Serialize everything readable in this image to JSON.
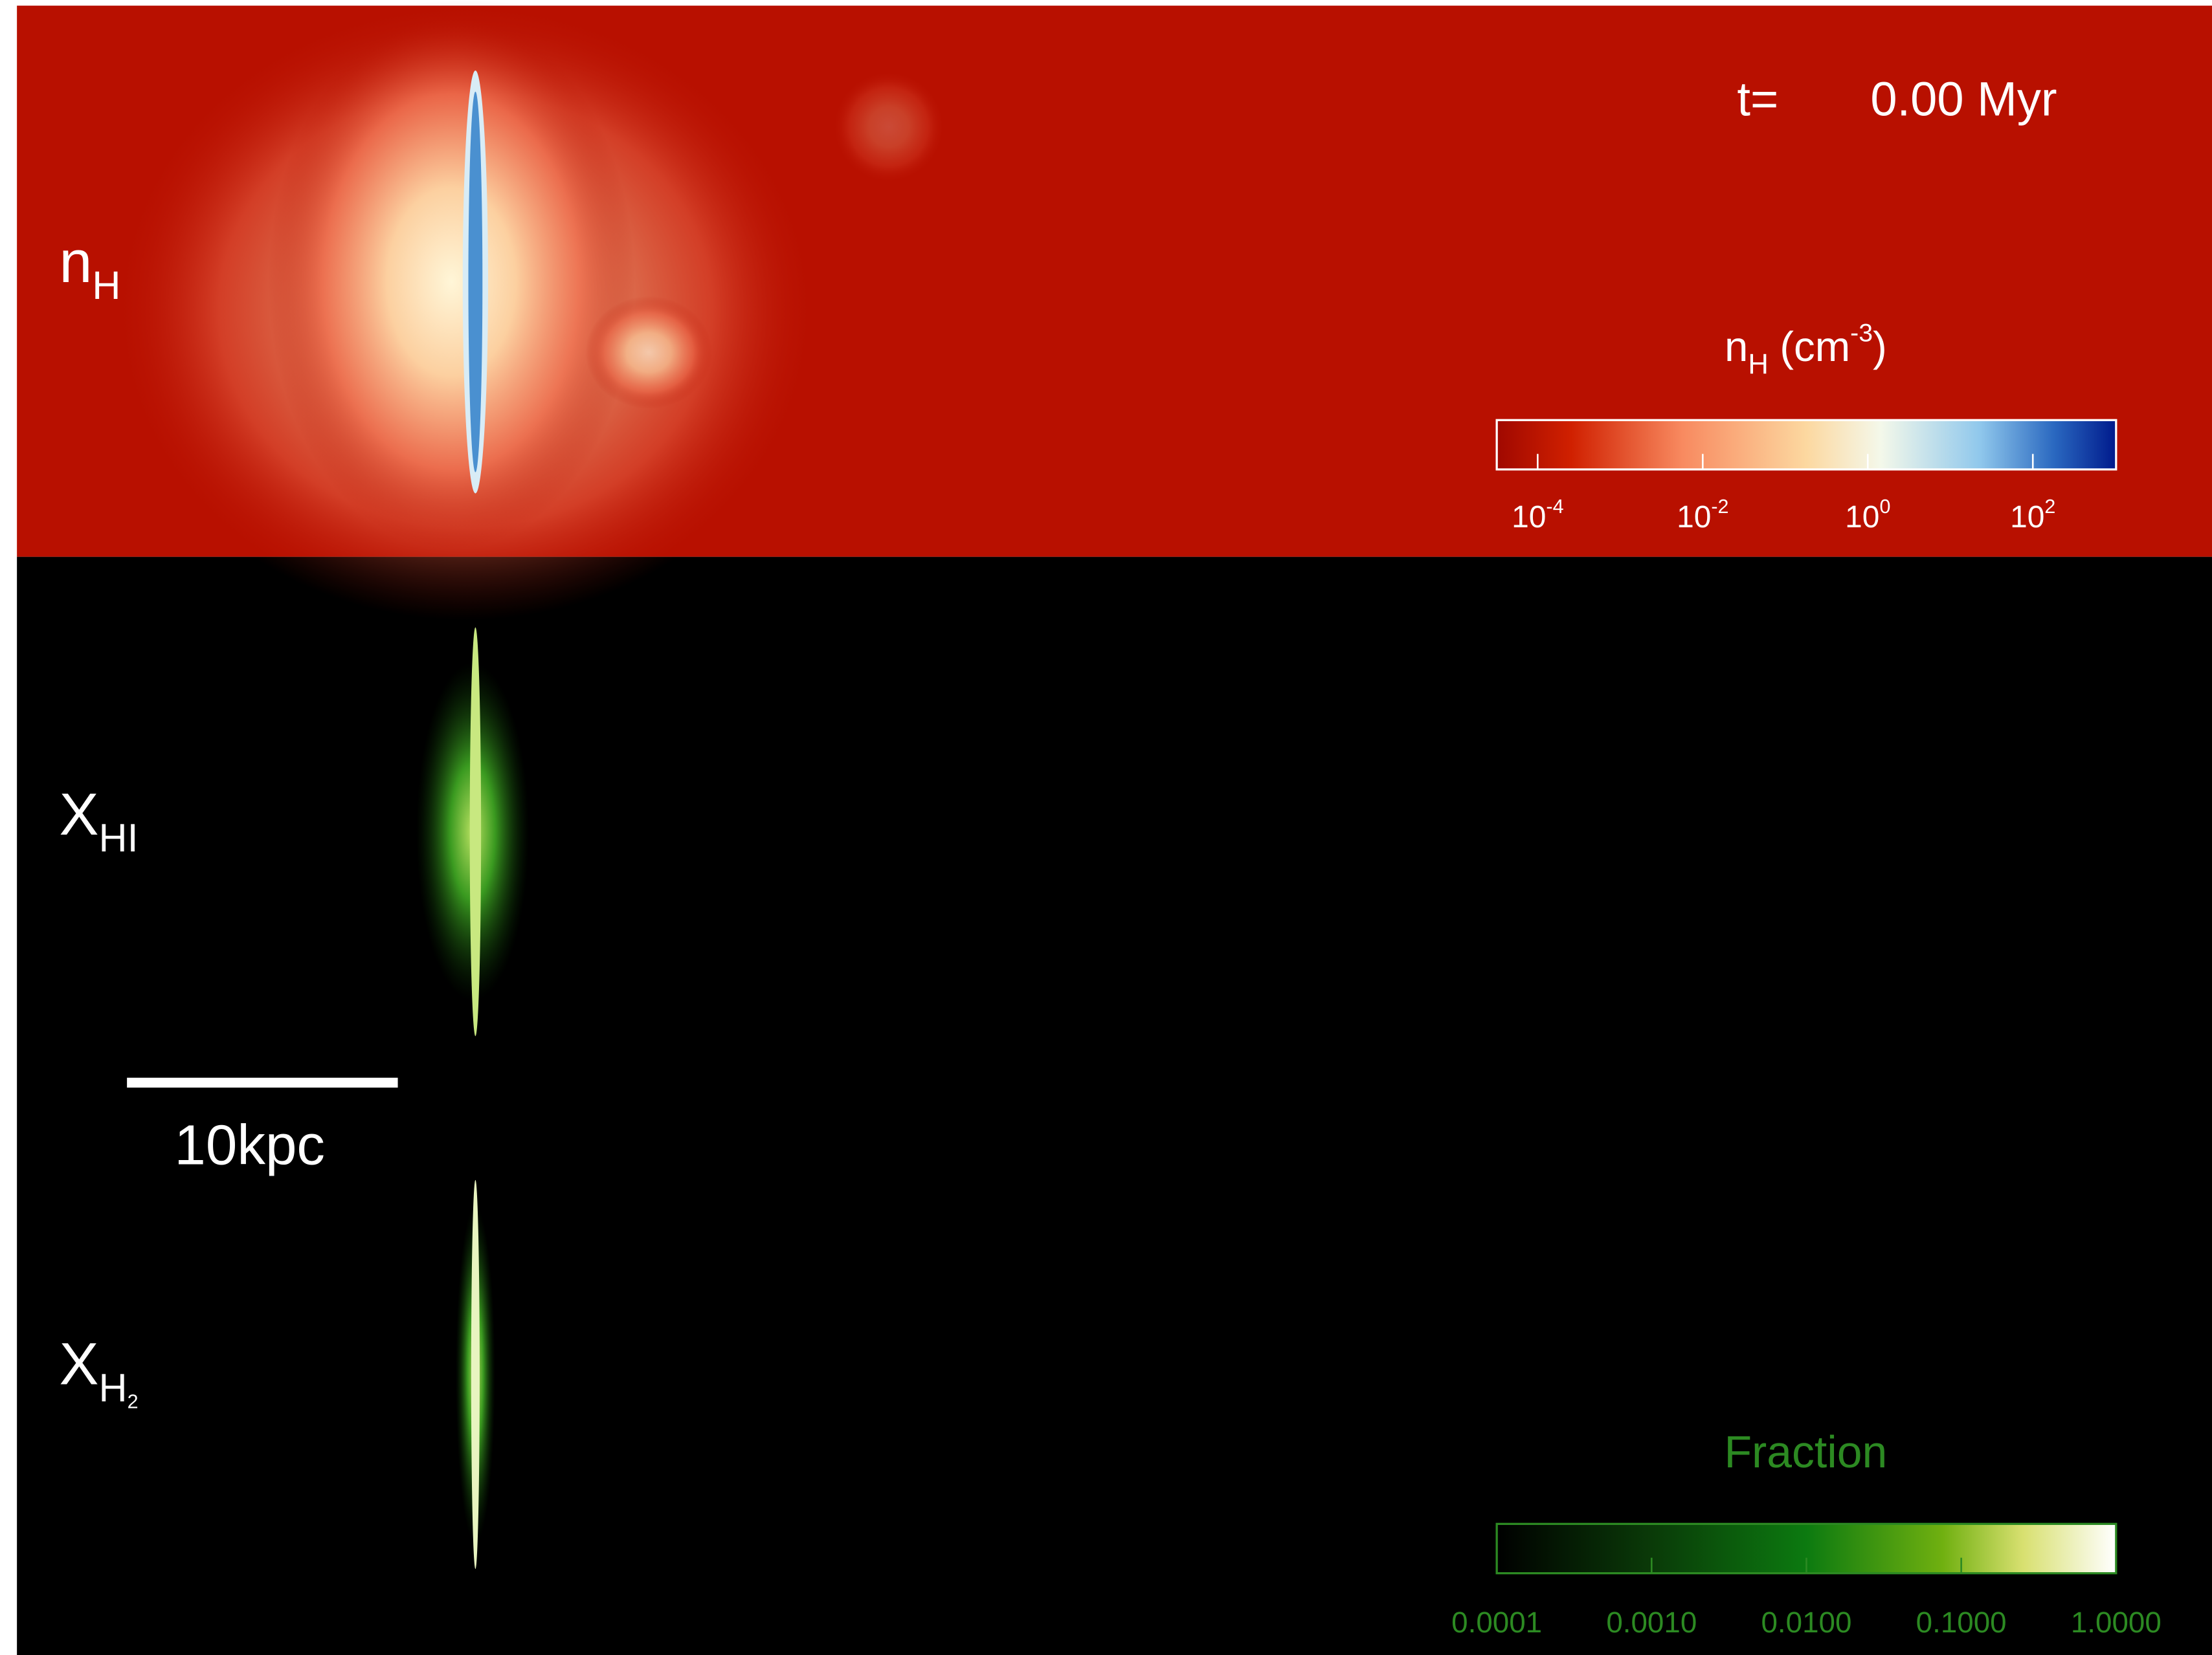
{
  "time": {
    "label": "t=",
    "value": "0.00 Myr"
  },
  "panels": [
    {
      "symbol": "n",
      "subscript": "H"
    },
    {
      "symbol": "X",
      "subscript": "HI"
    },
    {
      "symbol": "X",
      "subscript": "H",
      "subsubscript": "2"
    }
  ],
  "density_colorbar": {
    "symbol": "n",
    "subscript": "H",
    "unit": "(cm",
    "unit_exponent": "-3",
    "unit_close": ")",
    "ticks": [
      {
        "base": "10",
        "exponent": "-4"
      },
      {
        "base": "10",
        "exponent": "-2"
      },
      {
        "base": "10",
        "exponent": "0"
      },
      {
        "base": "10",
        "exponent": "2"
      }
    ]
  },
  "scale_bar": {
    "label": "10kpc"
  },
  "fraction_colorbar": {
    "label": "Fraction",
    "ticks": [
      "0.0001",
      "0.0010",
      "0.0100",
      "0.1000",
      "1.0000"
    ]
  }
}
